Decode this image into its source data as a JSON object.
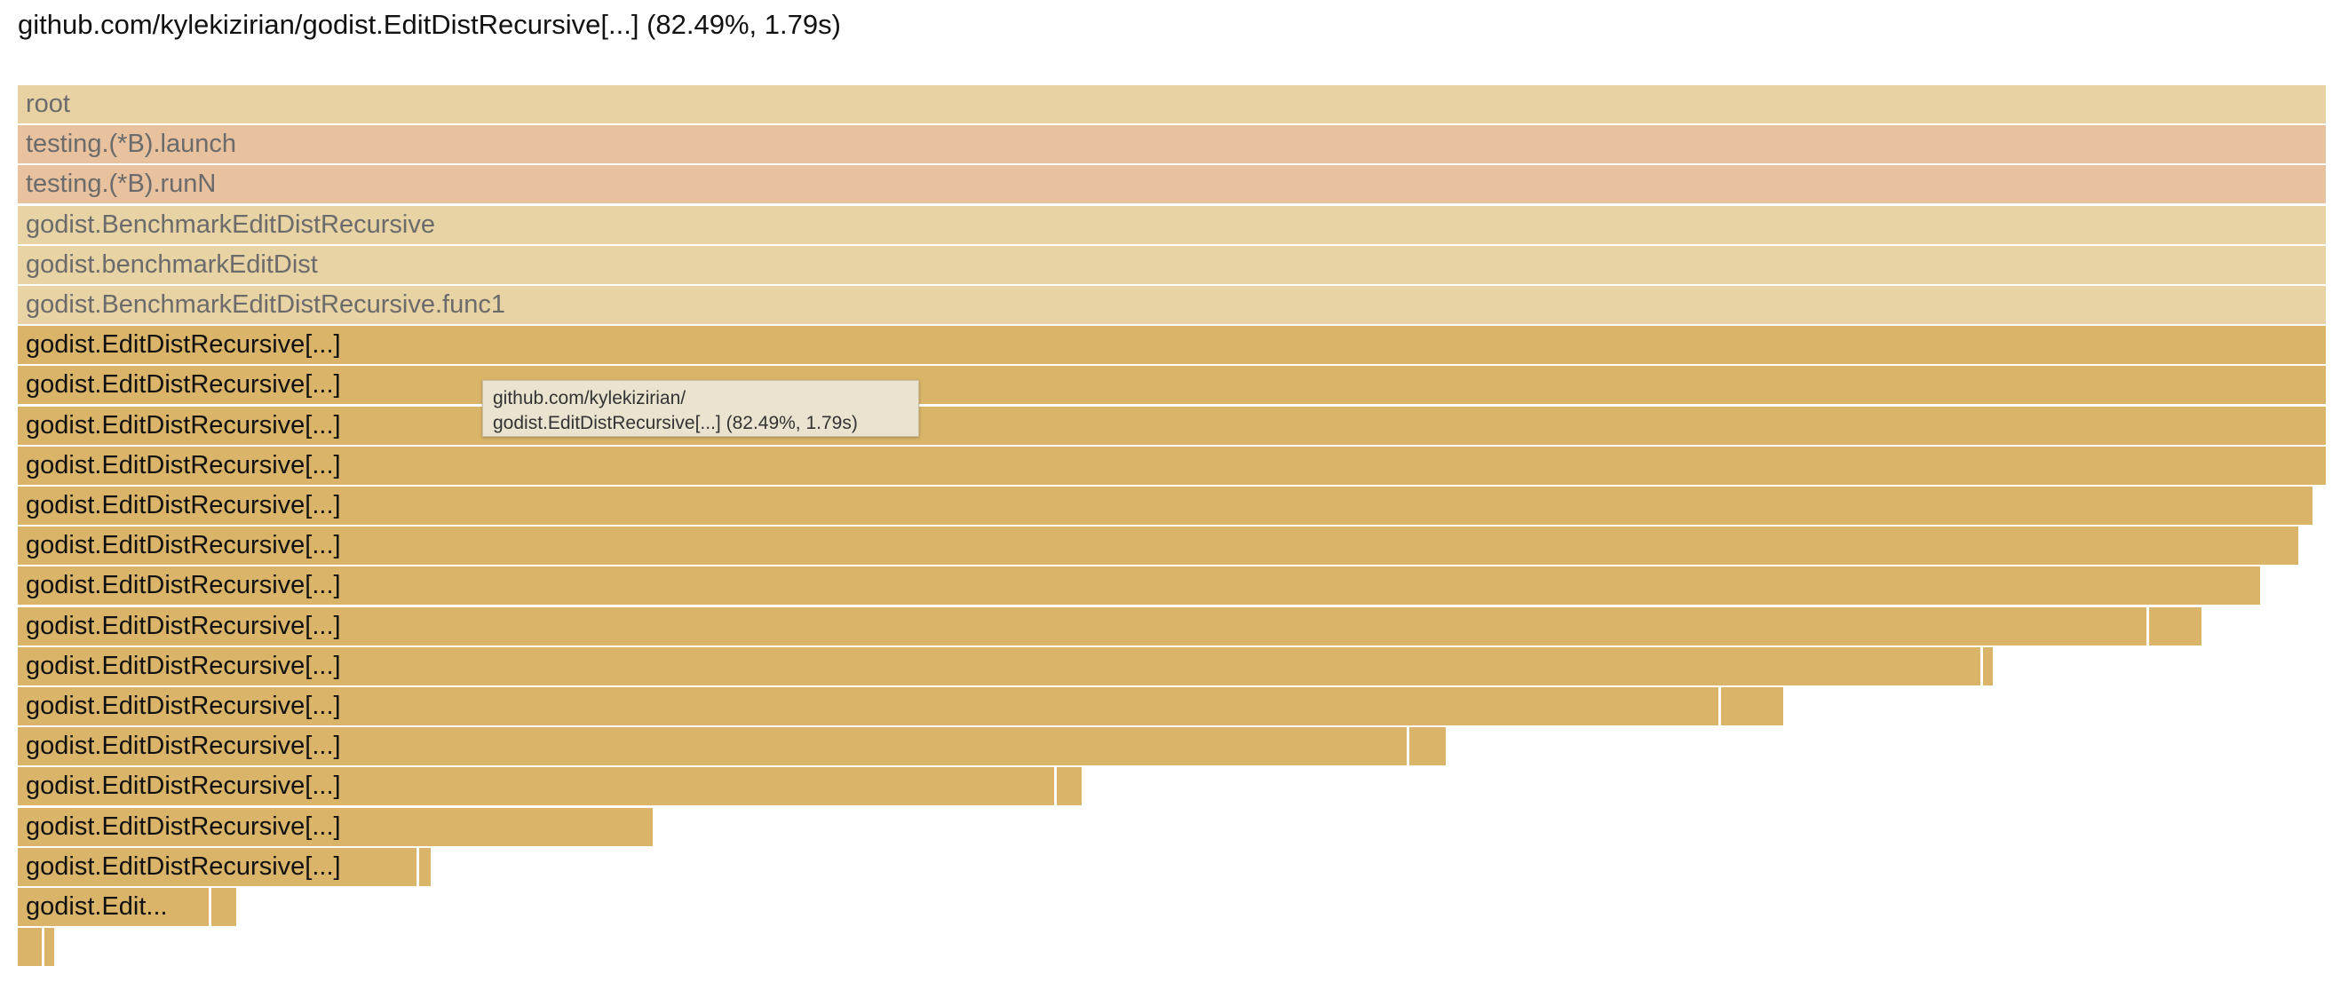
{
  "header": {
    "title": "github.com/kylekizirian/godist.EditDistRecursive[...] (82.49%, 1.79s)"
  },
  "colors": {
    "root": "#e8d2a3",
    "testing": "#e8c19e",
    "context": "#e8d3a5",
    "focus": "#d9b469",
    "tooltip_bg": "#e9e3cf"
  },
  "tooltip": {
    "line1": "github.com/kylekizirian/",
    "line2": "godist.EditDistRecursive[...] (82.49%, 1.79s)"
  },
  "frames": [
    {
      "label": "root",
      "style": "root"
    },
    {
      "label": "testing.(*B).launch",
      "style": "testing"
    },
    {
      "label": "testing.(*B).runN",
      "style": "testing"
    },
    {
      "label": "godist.BenchmarkEditDistRecursive",
      "style": "context"
    },
    {
      "label": "godist.benchmarkEditDist",
      "style": "context"
    },
    {
      "label": "godist.BenchmarkEditDistRecursive.func1",
      "style": "context"
    },
    {
      "label": "godist.EditDistRecursive[...]",
      "style": "focus"
    },
    {
      "label": "godist.EditDistRecursive[...]",
      "style": "focus"
    },
    {
      "label": "godist.EditDistRecursive[...]",
      "style": "focus"
    },
    {
      "label": "godist.EditDistRecursive[...]",
      "style": "focus"
    },
    {
      "label": "godist.EditDistRecursive[...]",
      "style": "focus"
    },
    {
      "label": "godist.EditDistRecursive[...]",
      "style": "focus"
    },
    {
      "label": "godist.EditDistRecursive[...]",
      "style": "focus"
    },
    {
      "label": "godist.EditDistRecursive[...]",
      "style": "focus"
    },
    {
      "label": "godist.EditDistRecursive[...]",
      "style": "focus"
    },
    {
      "label": "godist.EditDistRecursive[...]",
      "style": "focus"
    },
    {
      "label": "godist.EditDistRecursive[...]",
      "style": "focus"
    },
    {
      "label": "godist.EditDistRecursive[...]",
      "style": "focus"
    },
    {
      "label": "godist.EditDistRecursive[...]",
      "style": "focus"
    },
    {
      "label": "godist.EditDistRecursive[...]",
      "style": "focus"
    },
    {
      "label": "godist.Edit...",
      "style": "focus"
    },
    {
      "label": "",
      "style": "focus"
    },
    {
      "label": "",
      "style": "focus"
    },
    {
      "label": "",
      "style": "focus"
    },
    {
      "label": "",
      "style": "focus"
    },
    {
      "label": "",
      "style": "focus"
    },
    {
      "label": "",
      "style": "focus"
    },
    {
      "label": "",
      "style": "focus"
    },
    {
      "label": "",
      "style": "focus"
    },
    {
      "label": "",
      "style": "focus"
    },
    {
      "label": "",
      "style": "focus"
    },
    {
      "label": "",
      "style": "focus"
    },
    {
      "label": "",
      "style": "focus"
    },
    {
      "label": "",
      "style": "focus"
    },
    {
      "label": "",
      "style": "focus"
    },
    {
      "label": "",
      "style": "focus"
    },
    {
      "label": "",
      "style": "focus"
    },
    {
      "label": "",
      "style": "focus"
    },
    {
      "label": "",
      "style": "focus"
    },
    {
      "label": "",
      "style": "focus"
    }
  ]
}
